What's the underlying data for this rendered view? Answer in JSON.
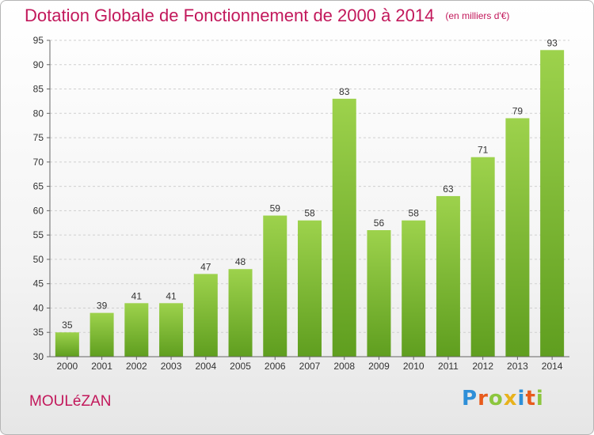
{
  "chart_data": {
    "type": "bar",
    "title": "Dotation Globale de Fonctionnement de 2000 à 2014",
    "subtitle": "(en milliers d'€)",
    "categories": [
      "2000",
      "2001",
      "2002",
      "2003",
      "2004",
      "2005",
      "2006",
      "2007",
      "2008",
      "2009",
      "2010",
      "2011",
      "2012",
      "2013",
      "2014"
    ],
    "values": [
      35,
      39,
      41,
      41,
      47,
      48,
      59,
      58,
      83,
      56,
      58,
      63,
      71,
      79,
      93
    ],
    "ylim": [
      30,
      95
    ],
    "yticks": [
      30,
      35,
      40,
      45,
      50,
      55,
      60,
      65,
      70,
      75,
      80,
      85,
      90,
      95
    ],
    "grid": true,
    "bar_color": "#7cb82f",
    "label_color": "#c2185b"
  },
  "footer": {
    "commune": "MOULéZAN",
    "logo_letters": [
      "P",
      "r",
      "o",
      "x",
      "i",
      "t",
      "i"
    ],
    "logo_colors": [
      "#2e8fd8",
      "#e85b1c",
      "#8cc63e",
      "#e8b21c",
      "#2e8fd8",
      "#e85b1c",
      "#8cc63e"
    ]
  }
}
